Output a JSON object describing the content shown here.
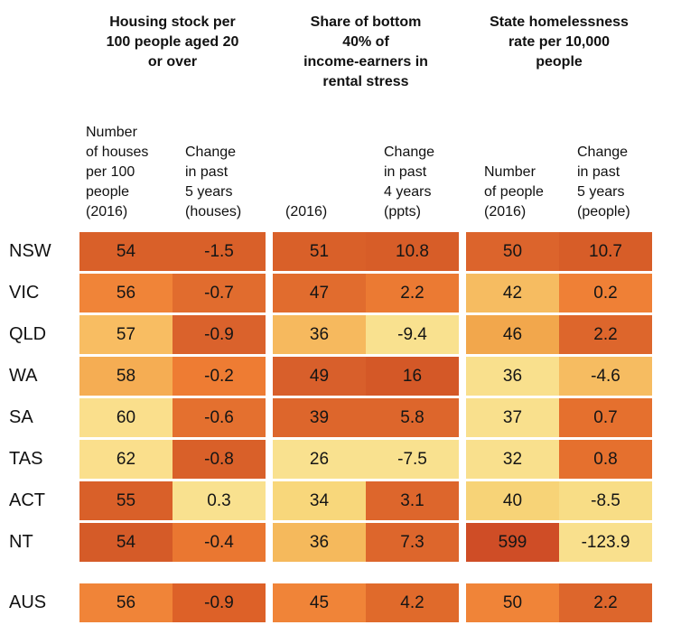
{
  "figure": {
    "groups": [
      {
        "title": "Housing stock per\n100 people aged 20\nor over",
        "subheaders": [
          "Number\nof houses\nper 100\npeople\n(2016)",
          "Change\nin past\n5 years\n(houses)"
        ]
      },
      {
        "title": "Share of bottom\n40% of\nincome-earners in\nrental stress",
        "subheaders": [
          "(2016)",
          "Change\nin past\n4 years\n(ppts)"
        ]
      },
      {
        "title": "State homelessness\nrate per 10,000\npeople",
        "subheaders": [
          "Number\nof people\n(2016)",
          "Change\nin past\n5 years\n(people)"
        ]
      }
    ],
    "rows": [
      {
        "label": "NSW",
        "cells": [
          {
            "v": "54",
            "bg": "#d96029"
          },
          {
            "v": "-1.5",
            "bg": "#d96029"
          },
          {
            "v": "51",
            "bg": "#d96029"
          },
          {
            "v": "10.8",
            "bg": "#d75d28"
          },
          {
            "v": "50",
            "bg": "#dc642c"
          },
          {
            "v": "10.7",
            "bg": "#d75d28"
          }
        ]
      },
      {
        "label": "VIC",
        "cells": [
          {
            "v": "56",
            "bg": "#f08438"
          },
          {
            "v": "-0.7",
            "bg": "#e16c2e"
          },
          {
            "v": "47",
            "bg": "#e16c2e"
          },
          {
            "v": "2.2",
            "bg": "#eb7a33"
          },
          {
            "v": "42",
            "bg": "#f6bc61"
          },
          {
            "v": "0.2",
            "bg": "#ef8036"
          }
        ]
      },
      {
        "label": "QLD",
        "cells": [
          {
            "v": "57",
            "bg": "#f8bd62"
          },
          {
            "v": "-0.9",
            "bg": "#da622c"
          },
          {
            "v": "36",
            "bg": "#f6b95e"
          },
          {
            "v": "-9.4",
            "bg": "#f9e18f"
          },
          {
            "v": "46",
            "bg": "#f2a74c"
          },
          {
            "v": "2.2",
            "bg": "#dd662c"
          }
        ]
      },
      {
        "label": "WA",
        "cells": [
          {
            "v": "58",
            "bg": "#f5ad53"
          },
          {
            "v": "-0.2",
            "bg": "#ee7c33"
          },
          {
            "v": "49",
            "bg": "#d85f2b"
          },
          {
            "v": "16",
            "bg": "#d45827"
          },
          {
            "v": "36",
            "bg": "#f9e08d"
          },
          {
            "v": "-4.6",
            "bg": "#f6bc61"
          }
        ]
      },
      {
        "label": "SA",
        "cells": [
          {
            "v": "60",
            "bg": "#fadf8c"
          },
          {
            "v": "-0.6",
            "bg": "#e4702f"
          },
          {
            "v": "39",
            "bg": "#dd662c"
          },
          {
            "v": "5.8",
            "bg": "#dd662c"
          },
          {
            "v": "37",
            "bg": "#f9e08d"
          },
          {
            "v": "0.7",
            "bg": "#e5702e"
          }
        ]
      },
      {
        "label": "TAS",
        "cells": [
          {
            "v": "62",
            "bg": "#fadf8c"
          },
          {
            "v": "-0.8",
            "bg": "#d96029"
          },
          {
            "v": "26",
            "bg": "#f9e18f"
          },
          {
            "v": "-7.5",
            "bg": "#f9e18f"
          },
          {
            "v": "32",
            "bg": "#f9e08d"
          },
          {
            "v": "0.8",
            "bg": "#e5702e"
          }
        ]
      },
      {
        "label": "ACT",
        "cells": [
          {
            "v": "55",
            "bg": "#d96029"
          },
          {
            "v": "0.3",
            "bg": "#f9e18f"
          },
          {
            "v": "34",
            "bg": "#f8d77b"
          },
          {
            "v": "3.1",
            "bg": "#dd662c"
          },
          {
            "v": "40",
            "bg": "#f7d377"
          },
          {
            "v": "-8.5",
            "bg": "#f8dd86"
          }
        ]
      },
      {
        "label": "NT",
        "cells": [
          {
            "v": "54",
            "bg": "#d55b28"
          },
          {
            "v": "-0.4",
            "bg": "#ea7731"
          },
          {
            "v": "36",
            "bg": "#f5b95c"
          },
          {
            "v": "7.3",
            "bg": "#dd662c"
          },
          {
            "v": "599",
            "bg": "#cf4d26"
          },
          {
            "v": "-123.9",
            "bg": "#f9e08d"
          }
        ]
      }
    ],
    "footer_row": {
      "label": "AUS",
      "cells": [
        {
          "v": "56",
          "bg": "#f08438"
        },
        {
          "v": "-0.9",
          "bg": "#dd6128"
        },
        {
          "v": "45",
          "bg": "#f08438"
        },
        {
          "v": "4.2",
          "bg": "#e06a2b"
        },
        {
          "v": "50",
          "bg": "#f08438"
        },
        {
          "v": "2.2",
          "bg": "#dd662c"
        }
      ]
    }
  },
  "chart_data": {
    "type": "heatmap",
    "row_labels": [
      "NSW",
      "VIC",
      "QLD",
      "WA",
      "SA",
      "TAS",
      "ACT",
      "NT",
      "AUS"
    ],
    "column_groups": [
      "Housing stock per 100 people aged 20 or over",
      "Share of bottom 40% of income-earners in rental stress",
      "State homelessness rate per 10,000 people"
    ],
    "columns": [
      "Housing stock: number of houses per 100 people (2016)",
      "Housing stock: change in past 5 years (houses)",
      "Rental stress: share (2016)",
      "Rental stress: change in past 4 years (ppts)",
      "Homelessness: number of people (2016)",
      "Homelessness: change in past 5 years (people)"
    ],
    "values": [
      [
        54,
        -1.5,
        51,
        10.8,
        50,
        10.7
      ],
      [
        56,
        -0.7,
        47,
        2.2,
        42,
        0.2
      ],
      [
        57,
        -0.9,
        36,
        -9.4,
        46,
        2.2
      ],
      [
        58,
        -0.2,
        49,
        16,
        36,
        -4.6
      ],
      [
        60,
        -0.6,
        39,
        5.8,
        37,
        0.7
      ],
      [
        62,
        -0.8,
        26,
        -7.5,
        32,
        0.8
      ],
      [
        55,
        0.3,
        34,
        3.1,
        40,
        -8.5
      ],
      [
        54,
        -0.4,
        36,
        7.3,
        599,
        -123.9
      ],
      [
        56,
        -0.9,
        45,
        4.2,
        50,
        2.2
      ]
    ],
    "legend": "cell shading: dark red-orange = worse outcome, pale yellow = better outcome",
    "palette": [
      "#cf4d26",
      "#d96029",
      "#e16c2e",
      "#f08438",
      "#f2a74c",
      "#f6bc61",
      "#f9e18f"
    ]
  }
}
